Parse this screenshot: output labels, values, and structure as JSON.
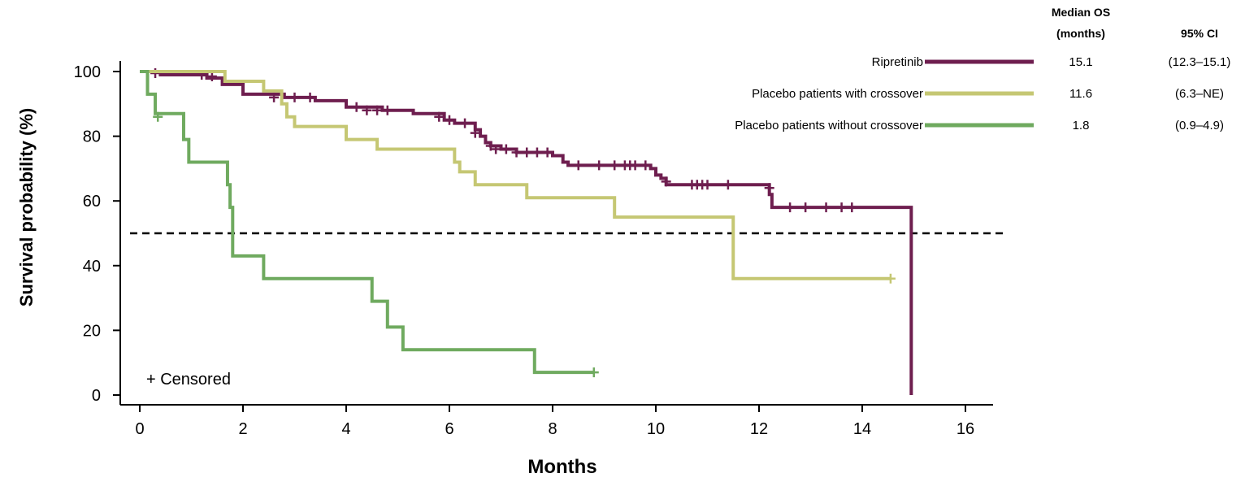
{
  "chart_data": {
    "type": "line",
    "step": true,
    "xlabel": "Months",
    "ylabel": "Survival probability (%)",
    "xlim": [
      0,
      16
    ],
    "ylim": [
      0,
      100
    ],
    "xticks": [
      "0",
      "2",
      "4",
      "6",
      "8",
      "10",
      "12",
      "14",
      "16"
    ],
    "yticks": [
      "0",
      "20",
      "40",
      "60",
      "80",
      "100"
    ],
    "reference_line": {
      "y": 50,
      "style": "dashed"
    },
    "censor_note": "+ Censored",
    "table_headers": {
      "median": "Median OS\n(months)",
      "ci": "95% CI"
    },
    "series": [
      {
        "name": "Ripretinib",
        "color": "#6E1E4F",
        "median_os": "15.1",
        "ci": "(12.3–15.1)",
        "steps": [
          [
            0,
            100
          ],
          [
            0.4,
            99
          ],
          [
            1.3,
            98
          ],
          [
            1.6,
            96
          ],
          [
            2.0,
            93
          ],
          [
            2.8,
            92
          ],
          [
            3.4,
            91
          ],
          [
            4.0,
            89
          ],
          [
            4.7,
            88
          ],
          [
            5.3,
            87
          ],
          [
            5.9,
            85
          ],
          [
            6.1,
            84
          ],
          [
            6.5,
            82
          ],
          [
            6.6,
            80
          ],
          [
            6.7,
            78
          ],
          [
            6.8,
            77
          ],
          [
            7.0,
            76
          ],
          [
            7.3,
            75
          ],
          [
            8.0,
            74
          ],
          [
            8.2,
            72
          ],
          [
            8.3,
            71
          ],
          [
            9.9,
            70
          ],
          [
            10.0,
            68
          ],
          [
            10.1,
            67
          ],
          [
            10.2,
            65
          ],
          [
            12.2,
            62
          ],
          [
            12.25,
            58
          ],
          [
            14.9,
            58
          ],
          [
            14.95,
            0
          ]
        ],
        "censored": [
          [
            0.3,
            99.5
          ],
          [
            1.2,
            99
          ],
          [
            1.4,
            98.5
          ],
          [
            2.6,
            92
          ],
          [
            3.0,
            92
          ],
          [
            3.3,
            92
          ],
          [
            4.2,
            89
          ],
          [
            4.4,
            88
          ],
          [
            4.6,
            88
          ],
          [
            4.8,
            88
          ],
          [
            5.8,
            86
          ],
          [
            6.0,
            85
          ],
          [
            6.3,
            84
          ],
          [
            6.5,
            81
          ],
          [
            6.8,
            77
          ],
          [
            6.9,
            76
          ],
          [
            7.1,
            76
          ],
          [
            7.3,
            75
          ],
          [
            7.5,
            75
          ],
          [
            7.7,
            75
          ],
          [
            7.9,
            75
          ],
          [
            8.5,
            71
          ],
          [
            8.9,
            71
          ],
          [
            9.2,
            71
          ],
          [
            9.4,
            71
          ],
          [
            9.5,
            71
          ],
          [
            9.6,
            71
          ],
          [
            9.8,
            71
          ],
          [
            10.2,
            66
          ],
          [
            10.7,
            65
          ],
          [
            10.8,
            65
          ],
          [
            10.9,
            65
          ],
          [
            11.0,
            65
          ],
          [
            11.4,
            65
          ],
          [
            12.2,
            64
          ],
          [
            12.6,
            58
          ],
          [
            12.9,
            58
          ],
          [
            13.3,
            58
          ],
          [
            13.6,
            58
          ],
          [
            13.8,
            58
          ]
        ]
      },
      {
        "name": "Placebo patients with crossover",
        "color": "#C5C773",
        "median_os": "11.6",
        "ci": "(6.3–NE)",
        "steps": [
          [
            0,
            100
          ],
          [
            1.65,
            97
          ],
          [
            2.4,
            94
          ],
          [
            2.75,
            90
          ],
          [
            2.85,
            86
          ],
          [
            3.0,
            83
          ],
          [
            4.0,
            79
          ],
          [
            4.6,
            76
          ],
          [
            6.1,
            72
          ],
          [
            6.2,
            69
          ],
          [
            6.5,
            65
          ],
          [
            7.5,
            61
          ],
          [
            9.2,
            55
          ],
          [
            11.5,
            36
          ],
          [
            14.55,
            36
          ]
        ],
        "censored": [
          [
            14.55,
            36
          ]
        ]
      },
      {
        "name": "Placebo patients without crossover",
        "color": "#6FAA5F",
        "median_os": "1.8",
        "ci": "(0.9–4.9)",
        "steps": [
          [
            0,
            100
          ],
          [
            0.15,
            93
          ],
          [
            0.3,
            87
          ],
          [
            0.85,
            79
          ],
          [
            0.95,
            72
          ],
          [
            1.7,
            65
          ],
          [
            1.75,
            58
          ],
          [
            1.8,
            43
          ],
          [
            2.4,
            36
          ],
          [
            4.5,
            29
          ],
          [
            4.8,
            21
          ],
          [
            5.1,
            14
          ],
          [
            7.65,
            7
          ],
          [
            8.8,
            7
          ]
        ],
        "censored": [
          [
            0.35,
            86
          ],
          [
            8.8,
            7
          ]
        ]
      }
    ]
  }
}
